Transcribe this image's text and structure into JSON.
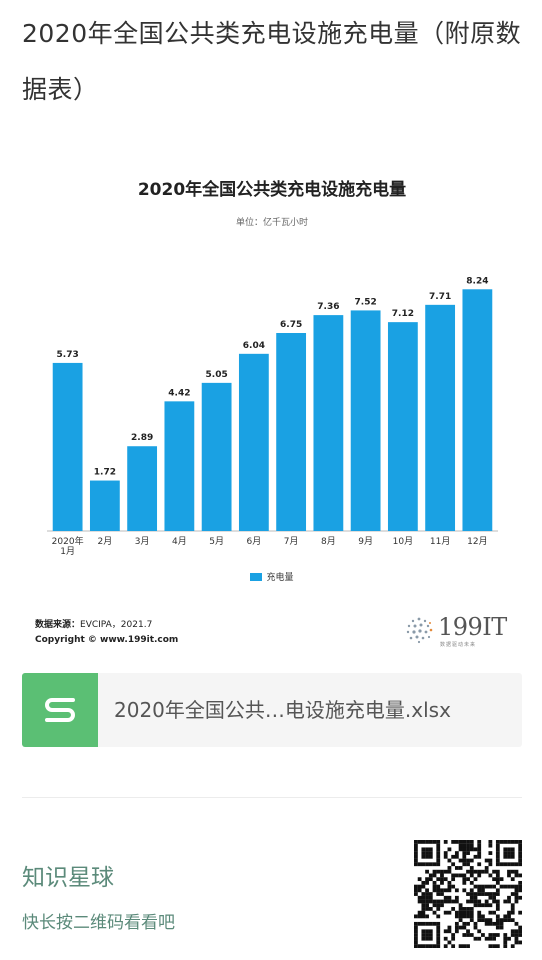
{
  "page": {
    "title": "2020年全国公共类充电设施充电量（附原数据表）"
  },
  "chart_data": {
    "type": "bar",
    "title": "2020年全国公共类充电设施充电量",
    "subtitle": "单位：亿千瓦小时",
    "categories": [
      "2020年\n1月",
      "2月",
      "3月",
      "4月",
      "5月",
      "6月",
      "7月",
      "8月",
      "9月",
      "10月",
      "11月",
      "12月"
    ],
    "series": [
      {
        "name": "充电量",
        "values": [
          5.73,
          1.72,
          2.89,
          4.42,
          5.05,
          6.04,
          6.75,
          7.36,
          7.52,
          7.12,
          7.71,
          8.24
        ],
        "color": "#1aa1e3"
      }
    ],
    "ylim": [
      0,
      9
    ],
    "grid": false,
    "legend": "bottom-center"
  },
  "source": {
    "label": "数据来源：",
    "value": "EVCIPA，2021.7",
    "copyright": "Copyright © www.199it.com"
  },
  "logo": {
    "text": "199IT",
    "sub": "数据驱动未来"
  },
  "attachment": {
    "icon": "spreadsheet-s-icon",
    "filename": "2020年全国公共…电设施充电量.xlsx",
    "accent": "#5bbf74"
  },
  "footer": {
    "planet_name": "知识星球",
    "tip": "快长按二维码看看吧"
  }
}
